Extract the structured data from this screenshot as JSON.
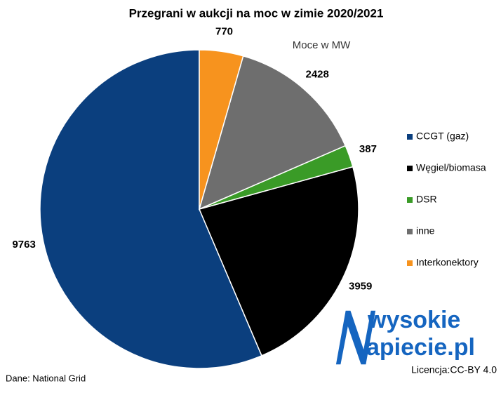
{
  "chart_data": {
    "type": "pie",
    "title": "Przegrani w aukcji na moc w zimie 2020/2021",
    "subtitle": "Moce w MW",
    "categories": [
      "CCGT (gaz)",
      "Węgiel/biomasa",
      "DSR",
      "inne",
      "Interkonektory"
    ],
    "values": [
      9763,
      3959,
      387,
      2428,
      770
    ],
    "colors": [
      "#0b3f7e",
      "#000000",
      "#3a9b27",
      "#6e6e6e",
      "#f7931e"
    ],
    "legend": "right"
  },
  "footer": {
    "source": "Dane: National Grid",
    "license": "Licencja:CC-BY 4.0",
    "logo_line1": "wysokie",
    "logo_line2": "apiecie.pl"
  }
}
